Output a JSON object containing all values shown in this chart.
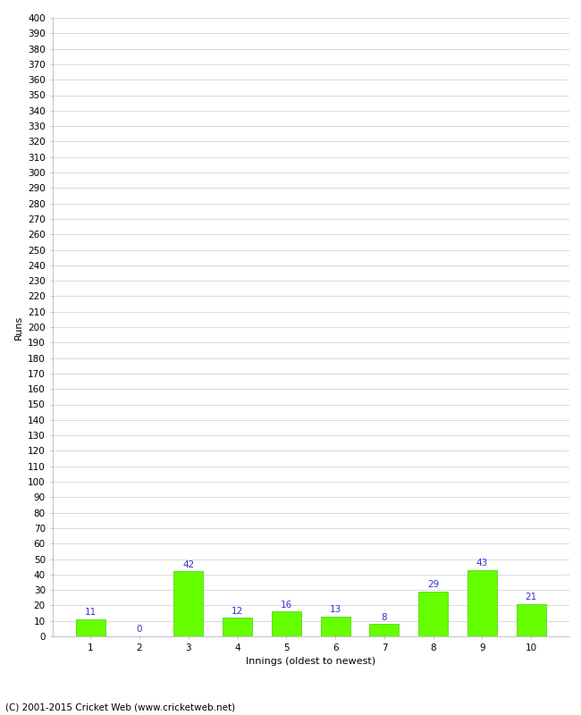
{
  "categories": [
    "1",
    "2",
    "3",
    "4",
    "5",
    "6",
    "7",
    "8",
    "9",
    "10"
  ],
  "values": [
    11,
    0,
    42,
    12,
    16,
    13,
    8,
    29,
    43,
    21
  ],
  "bar_color": "#66ff00",
  "bar_edge_color": "#44cc00",
  "label_color": "#3333cc",
  "xlabel": "Innings (oldest to newest)",
  "ylabel": "Runs",
  "ylim": [
    0,
    400
  ],
  "ytick_step": 10,
  "background_color": "#ffffff",
  "grid_color": "#cccccc",
  "footer": "(C) 2001-2015 Cricket Web (www.cricketweb.net)",
  "label_fontsize": 7.5,
  "axis_tick_fontsize": 7.5,
  "axis_label_fontsize": 8,
  "footer_fontsize": 7.5
}
